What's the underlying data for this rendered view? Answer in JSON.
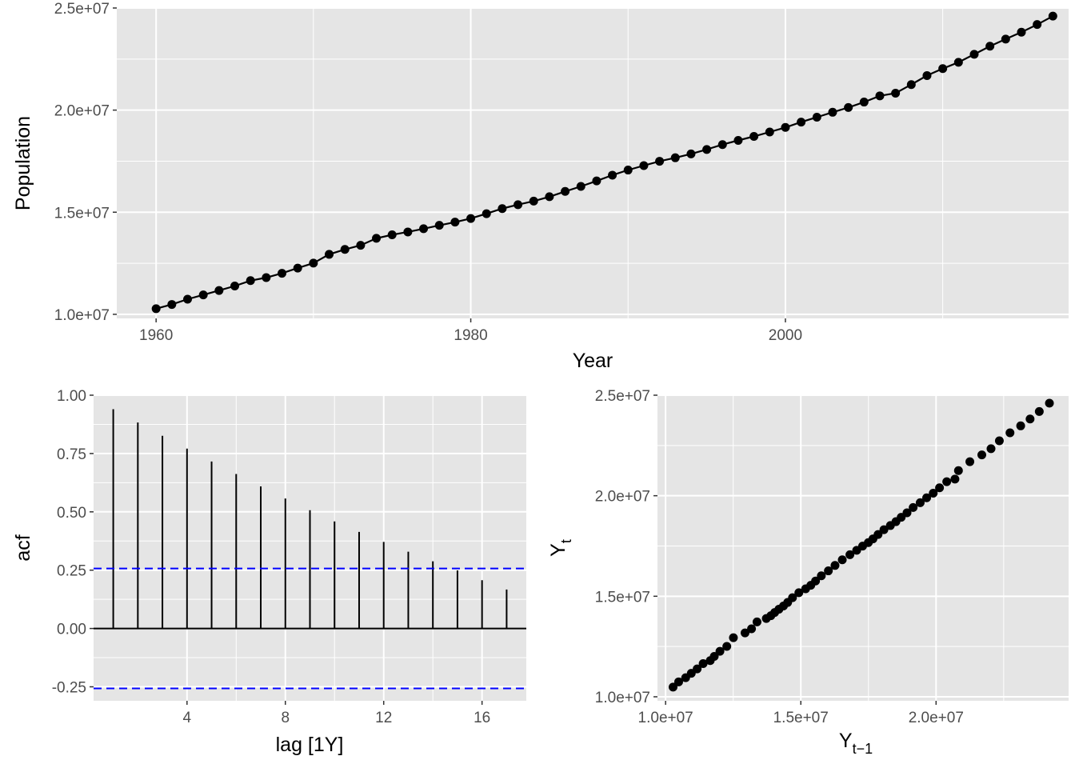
{
  "colors": {
    "panel_bg": "#e5e5e5",
    "grid_major": "#ffffff",
    "ink": "#000000",
    "tick_text": "#4d4d4d",
    "ci_line": "#0000ff"
  },
  "chart_data": [
    {
      "type": "line",
      "markers": true,
      "xlabel": "Year",
      "ylabel": "Population",
      "xlim": [
        1957.5,
        2018
      ],
      "ylim": [
        9800000,
        25000000
      ],
      "xticks": [
        1960,
        1980,
        2000
      ],
      "xtick_labels": [
        "1960",
        "1980",
        "2000"
      ],
      "yticks": [
        10000000,
        15000000,
        20000000,
        25000000
      ],
      "ytick_labels": [
        "1.0e+07",
        "1.5e+07",
        "2.0e+07",
        "2.5e+07"
      ],
      "grid": true,
      "x": [
        1960,
        1961,
        1962,
        1963,
        1964,
        1965,
        1966,
        1967,
        1968,
        1969,
        1970,
        1971,
        1972,
        1973,
        1974,
        1975,
        1976,
        1977,
        1978,
        1979,
        1980,
        1981,
        1982,
        1983,
        1984,
        1985,
        1986,
        1987,
        1988,
        1989,
        1990,
        1991,
        1992,
        1993,
        1994,
        1995,
        1996,
        1997,
        1998,
        1999,
        2000,
        2001,
        2002,
        2003,
        2004,
        2005,
        2006,
        2007,
        2008,
        2009,
        2010,
        2011,
        2012,
        2013,
        2014,
        2015,
        2016,
        2017
      ],
      "y": [
        10276477,
        10483000,
        10742000,
        10950000,
        11167000,
        11388000,
        11651000,
        11799000,
        12009000,
        12263000,
        12507000,
        12937000,
        13177000,
        13380000,
        13723000,
        13893000,
        14033000,
        14192000,
        14358000,
        14514000,
        14692000,
        14927000,
        15178000,
        15369000,
        15544000,
        15758000,
        16018400,
        16263900,
        16532200,
        16814400,
        17065100,
        17284000,
        17495000,
        17667000,
        17855000,
        18072000,
        18311000,
        18517000,
        18711000,
        18926000,
        19153000,
        19413000,
        19651400,
        19895400,
        20127400,
        20394800,
        20697900,
        20827600,
        21249200,
        21691700,
        22031750,
        22340024,
        22733465,
        23128129,
        23475686,
        23815995,
        24190907,
        24601860
      ]
    },
    {
      "type": "bar",
      "subtype": "acf",
      "xlabel": "lag [1Y]",
      "ylabel": "acf",
      "xlim": [
        0.2,
        17.8
      ],
      "ylim": [
        -0.31,
        1.0
      ],
      "xticks": [
        4,
        8,
        12,
        16
      ],
      "xtick_labels": [
        "4",
        "8",
        "12",
        "16"
      ],
      "yticks": [
        -0.25,
        0,
        0.25,
        0.5,
        0.75,
        1.0
      ],
      "ytick_labels": [
        "-0.25",
        "0.00",
        "0.25",
        "0.50",
        "0.75",
        "1.00"
      ],
      "grid": true,
      "categories": [
        1,
        2,
        3,
        4,
        5,
        6,
        7,
        8,
        9,
        10,
        11,
        12,
        13,
        14,
        15,
        16,
        17
      ],
      "values": [
        0.94,
        0.883,
        0.826,
        0.771,
        0.716,
        0.662,
        0.609,
        0.557,
        0.507,
        0.459,
        0.414,
        0.371,
        0.329,
        0.288,
        0.249,
        0.207,
        0.167
      ],
      "confidence_bound": 0.257
    },
    {
      "type": "scatter",
      "xlabel_main": "Y",
      "xlabel_sub": "t−1",
      "ylabel_main": "Y",
      "ylabel_sub": "t",
      "xlim": [
        9700000,
        24900000
      ],
      "ylim": [
        9800000,
        25000000
      ],
      "xticks": [
        10000000,
        15000000,
        20000000
      ],
      "xtick_labels": [
        "1.0e+07",
        "1.5e+07",
        "2.0e+07"
      ],
      "yticks": [
        10000000,
        15000000,
        20000000,
        25000000
      ],
      "ytick_labels": [
        "1.0e+07",
        "1.5e+07",
        "2.0e+07",
        "2.5e+07"
      ],
      "grid": true,
      "series_from": "chart_data.0.y lagged by one year"
    }
  ]
}
